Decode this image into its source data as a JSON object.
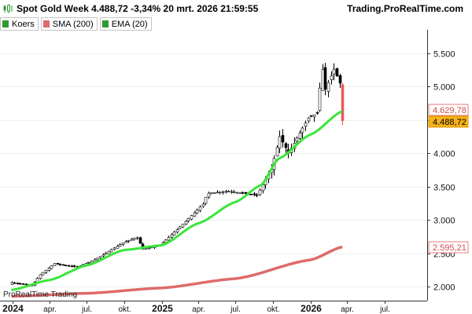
{
  "header": {
    "title": "Spot  Gold Week 4.488,72 -3,34% 20 mrt. 2026 21:59:55",
    "brand": "Trading.ProRealTime.com",
    "icon": "candlestick-app-icon"
  },
  "legend": [
    {
      "label": "Koers",
      "color": "#2e9b2e"
    },
    {
      "label": "SMA (200)",
      "color": "#de6b6b"
    },
    {
      "label": "EMA (20)",
      "color": "#2e9b2e"
    }
  ],
  "watermark": "ProRealTime Trading",
  "chart_data": {
    "type": "candlestick",
    "ylim": [
      1790,
      5850
    ],
    "y_ticks": [
      "5.500",
      "5.000",
      "4.500",
      "4.000",
      "3.500",
      "3.000",
      "2.500",
      "2.000"
    ],
    "x_ticks": [
      "2024",
      "apr.",
      "jul.",
      "okt.",
      "2025",
      "apr.",
      "jul.",
      "okt.",
      "2026",
      "apr.",
      "jul."
    ],
    "price_labels": [
      {
        "text": "4.629,78",
        "series": "EMA (20)"
      },
      {
        "text": "4.488,72",
        "series": "Koers"
      },
      {
        "text": "2.595,21",
        "series": "SMA (200)"
      }
    ],
    "ema_color": "#39e639",
    "sma_color": "#de6b6b",
    "last_candle_color": "#e85a5a",
    "weeks": [
      {
        "date": "2023-12-29",
        "close": 2062
      },
      {
        "date": "2024-02-16",
        "close": 2013
      },
      {
        "date": "2024-03-08",
        "close": 2179
      },
      {
        "date": "2024-04-12",
        "close": 2345
      },
      {
        "date": "2024-06-07",
        "close": 2294
      },
      {
        "date": "2024-07-19",
        "close": 2401
      },
      {
        "date": "2024-09-27",
        "close": 2658
      },
      {
        "date": "2024-10-31",
        "close": 2744
      },
      {
        "date": "2024-11-15",
        "close": 2563
      },
      {
        "date": "2024-12-27",
        "close": 2621
      },
      {
        "date": "2025-02-21",
        "close": 2936
      },
      {
        "date": "2025-04-11",
        "close": 3237
      },
      {
        "date": "2025-04-22",
        "close": 3400
      },
      {
        "date": "2025-06-13",
        "close": 3432
      },
      {
        "date": "2025-08-22",
        "close": 3371
      },
      {
        "date": "2025-09-26",
        "close": 3760
      },
      {
        "date": "2025-10-17",
        "close": 4250
      },
      {
        "date": "2025-11-07",
        "close": 4000
      },
      {
        "date": "2025-12-26",
        "close": 4530
      },
      {
        "date": "2026-01-16",
        "close": 4600
      },
      {
        "date": "2026-01-29",
        "close": 5300
      },
      {
        "date": "2026-02-06",
        "close": 4960
      },
      {
        "date": "2026-02-27",
        "close": 5260
      },
      {
        "date": "2026-03-13",
        "close": 5050
      },
      {
        "date": "2026-03-20",
        "close": 4488.72
      }
    ],
    "sma_200": [
      {
        "date": "2023-12-29",
        "value": 1855
      },
      {
        "date": "2024-07-01",
        "value": 1900
      },
      {
        "date": "2024-12-31",
        "value": 1980
      },
      {
        "date": "2025-07-01",
        "value": 2120
      },
      {
        "date": "2025-12-31",
        "value": 2400
      },
      {
        "date": "2026-03-20",
        "value": 2595.21
      }
    ],
    "ema_20": [
      {
        "date": "2023-12-29",
        "value": 1950
      },
      {
        "date": "2024-04-01",
        "value": 2100
      },
      {
        "date": "2024-07-01",
        "value": 2320
      },
      {
        "date": "2024-10-01",
        "value": 2550
      },
      {
        "date": "2025-01-01",
        "value": 2620
      },
      {
        "date": "2025-04-01",
        "value": 2950
      },
      {
        "date": "2025-07-01",
        "value": 3270
      },
      {
        "date": "2025-09-01",
        "value": 3520
      },
      {
        "date": "2025-10-15",
        "value": 3920
      },
      {
        "date": "2026-01-01",
        "value": 4280
      },
      {
        "date": "2026-03-20",
        "value": 4629.78
      }
    ]
  }
}
